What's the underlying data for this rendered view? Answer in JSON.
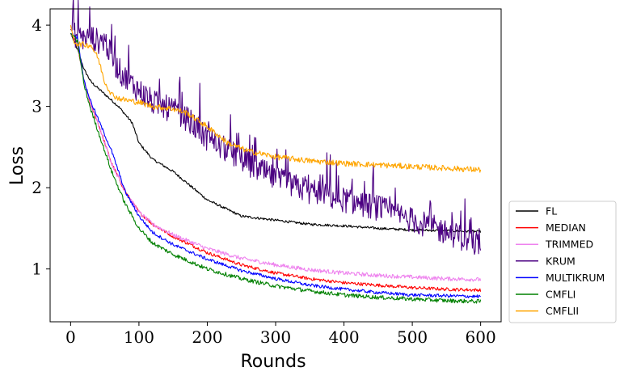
{
  "chart_data": {
    "type": "line",
    "title": "",
    "xlabel": "Rounds",
    "ylabel": "Loss",
    "xlim": [
      -30,
      630
    ],
    "ylim": [
      0.35,
      4.2
    ],
    "x_ticks": [
      0,
      100,
      200,
      300,
      400,
      500,
      600
    ],
    "y_ticks": [
      1,
      2,
      3,
      4
    ],
    "x_tick_labels": [
      "0",
      "100",
      "200",
      "300",
      "400",
      "500",
      "600"
    ],
    "y_tick_labels": [
      "1",
      "2",
      "3",
      "4"
    ],
    "grid": false,
    "legend_position": "outside-right-bottom",
    "series": [
      {
        "name": "FL",
        "color": "#000000",
        "x": [
          0,
          10,
          20,
          30,
          50,
          70,
          90,
          100,
          120,
          150,
          200,
          250,
          300,
          350,
          400,
          450,
          500,
          550,
          600
        ],
        "y": [
          3.9,
          3.7,
          3.45,
          3.3,
          3.15,
          3.0,
          2.8,
          2.55,
          2.35,
          2.2,
          1.85,
          1.65,
          1.6,
          1.55,
          1.53,
          1.5,
          1.48,
          1.47,
          1.46
        ],
        "noise": 0.015
      },
      {
        "name": "MEDIAN",
        "color": "#ff0000",
        "x": [
          0,
          10,
          20,
          30,
          40,
          60,
          80,
          100,
          120,
          150,
          200,
          250,
          300,
          350,
          400,
          450,
          500,
          550,
          600
        ],
        "y": [
          3.9,
          3.75,
          3.3,
          3.0,
          2.8,
          2.3,
          1.95,
          1.7,
          1.55,
          1.4,
          1.2,
          1.05,
          0.95,
          0.88,
          0.83,
          0.8,
          0.77,
          0.75,
          0.74
        ],
        "noise": 0.02
      },
      {
        "name": "TRIMMED",
        "color": "#ee82ee",
        "x": [
          0,
          10,
          20,
          30,
          40,
          60,
          80,
          100,
          120,
          150,
          200,
          250,
          300,
          350,
          400,
          450,
          500,
          550,
          600
        ],
        "y": [
          3.9,
          3.75,
          3.3,
          3.0,
          2.8,
          2.3,
          1.95,
          1.7,
          1.55,
          1.42,
          1.25,
          1.13,
          1.05,
          0.99,
          0.95,
          0.92,
          0.9,
          0.88,
          0.87
        ],
        "noise": 0.025
      },
      {
        "name": "KRUM",
        "color": "#4b0082",
        "x": [
          0,
          10,
          20,
          30,
          40,
          50,
          60,
          70,
          80,
          100,
          120,
          150,
          170,
          200,
          250,
          300,
          350,
          400,
          450,
          500,
          550,
          600
        ],
        "y": [
          3.95,
          3.85,
          3.85,
          3.85,
          3.8,
          3.82,
          3.6,
          3.45,
          3.35,
          3.2,
          3.05,
          2.95,
          2.85,
          2.6,
          2.35,
          2.1,
          1.95,
          1.85,
          1.75,
          1.6,
          1.45,
          1.3
        ],
        "noise": 0.16
      },
      {
        "name": "MULTIKRUM",
        "color": "#0000ff",
        "x": [
          0,
          10,
          20,
          30,
          40,
          60,
          80,
          100,
          120,
          150,
          200,
          250,
          300,
          350,
          400,
          450,
          500,
          550,
          600
        ],
        "y": [
          3.9,
          3.85,
          3.3,
          3.05,
          2.85,
          2.45,
          1.95,
          1.65,
          1.45,
          1.3,
          1.12,
          0.98,
          0.88,
          0.8,
          0.75,
          0.71,
          0.68,
          0.67,
          0.66
        ],
        "noise": 0.02
      },
      {
        "name": "CMFLI",
        "color": "#008000",
        "x": [
          0,
          10,
          20,
          30,
          40,
          60,
          80,
          100,
          120,
          150,
          200,
          250,
          300,
          350,
          400,
          450,
          500,
          550,
          600
        ],
        "y": [
          3.9,
          3.8,
          3.25,
          2.95,
          2.7,
          2.2,
          1.8,
          1.5,
          1.32,
          1.18,
          1.0,
          0.88,
          0.79,
          0.73,
          0.68,
          0.65,
          0.63,
          0.61,
          0.6
        ],
        "noise": 0.025
      },
      {
        "name": "CMFLII",
        "color": "#ffa500",
        "x": [
          0,
          5,
          10,
          20,
          30,
          40,
          50,
          60,
          70,
          80,
          100,
          120,
          150,
          170,
          200,
          230,
          260,
          300,
          350,
          400,
          450,
          500,
          550,
          600
        ],
        "y": [
          4.0,
          3.8,
          3.77,
          3.76,
          3.75,
          3.6,
          3.3,
          3.15,
          3.1,
          3.08,
          3.05,
          3.0,
          2.97,
          2.92,
          2.75,
          2.55,
          2.45,
          2.38,
          2.33,
          2.3,
          2.28,
          2.26,
          2.24,
          2.22
        ],
        "noise": 0.035
      }
    ]
  }
}
